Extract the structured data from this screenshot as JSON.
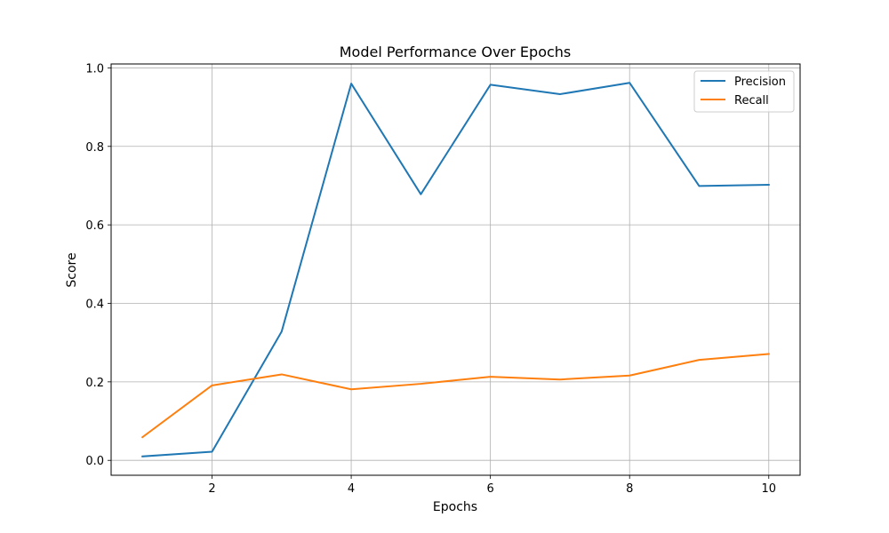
{
  "chart_data": {
    "type": "line",
    "title": "Model Performance Over Epochs",
    "xlabel": "Epochs",
    "ylabel": "Score",
    "x": [
      1,
      2,
      3,
      4,
      5,
      6,
      7,
      8,
      9,
      10
    ],
    "xlim": [
      0.55,
      10.45
    ],
    "ylim": [
      -0.038,
      1.01
    ],
    "xticks": [
      2,
      4,
      6,
      8,
      10
    ],
    "yticks": [
      0.0,
      0.2,
      0.4,
      0.6,
      0.8,
      1.0
    ],
    "xtick_labels": [
      "2",
      "4",
      "6",
      "8",
      "10"
    ],
    "ytick_labels": [
      "0.0",
      "0.2",
      "0.4",
      "0.6",
      "0.8",
      "1.0"
    ],
    "grid": true,
    "legend_position": "top-right",
    "series": [
      {
        "name": "Precision",
        "color": "#1f77b4",
        "values": [
          0.01,
          0.022,
          0.328,
          0.96,
          0.678,
          0.957,
          0.933,
          0.962,
          0.699,
          0.702
        ]
      },
      {
        "name": "Recall",
        "color": "#ff7f0e",
        "values": [
          0.059,
          0.191,
          0.219,
          0.181,
          0.195,
          0.213,
          0.206,
          0.216,
          0.256,
          0.271
        ]
      }
    ]
  }
}
